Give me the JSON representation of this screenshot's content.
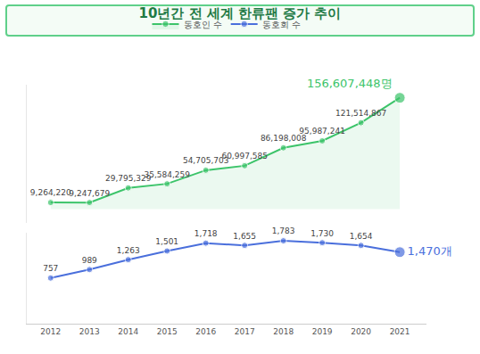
{
  "chart_data": {
    "type": "line",
    "title": "10년간 전 세계 한류팬 증가 추이",
    "categories": [
      "2012",
      "2013",
      "2014",
      "2015",
      "2016",
      "2017",
      "2018",
      "2019",
      "2020",
      "2021"
    ],
    "series": [
      {
        "name": "동호인 수",
        "color": "#3cc46a",
        "marker": "circle",
        "values": [
          9264220,
          9247679,
          29795329,
          35584259,
          54705703,
          60997585,
          86198008,
          95987241,
          121514867,
          156607448
        ],
        "value_labels": [
          "9,264,220",
          "9,247,679",
          "29,795,329",
          "35,584,259",
          "54,705,703",
          "60,997,585",
          "86,198,008",
          "95,987,241",
          "121,514,867",
          "156,607,448명"
        ]
      },
      {
        "name": "동호회 수",
        "color": "#4a6fdc",
        "marker": "circle",
        "axis": "y2",
        "values": [
          757,
          989,
          1263,
          1501,
          1718,
          1655,
          1783,
          1730,
          1654,
          1470
        ],
        "value_labels": [
          "757",
          "989",
          "1,263",
          "1,501",
          "1,718",
          "1,655",
          "1,783",
          "1,730",
          "1,654",
          "1,470개"
        ]
      }
    ],
    "ylim": [
      -20000000,
      175000000
    ],
    "y2lim": [
      -500,
      2000
    ],
    "data_labels": true,
    "legend": "top",
    "tick_labels": "x",
    "grid": false
  }
}
